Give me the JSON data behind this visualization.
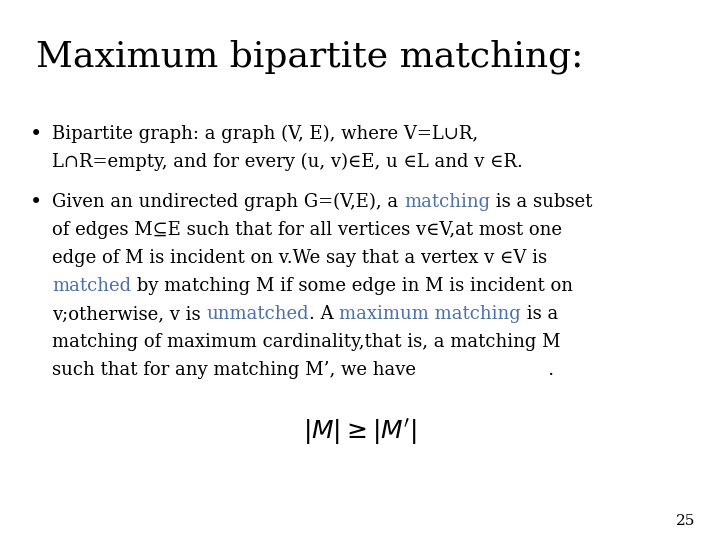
{
  "title": "Maximum bipartite matching:",
  "title_fontsize": 26,
  "body_fontsize": 13,
  "math_fontsize": 18,
  "background_color": "#ffffff",
  "text_color": "#000000",
  "highlight_color": "#4b6faf",
  "page_number": "25",
  "bullet1_line1": "Bipartite graph: a graph (V, E), where V=L∪R,",
  "bullet1_line2": "L∩R=empty, and for every (u, v)∈E, u ∈L and v ∈R.",
  "bullet2_line2": "of edges M⊆E such that for all vertices v∈V,at most one",
  "bullet2_line3": "edge of M is incident on v.We say that a vertex v ∈V is",
  "bullet2_line6": "matching of maximum cardinality,that is, a matching M",
  "bullet2_line7": "such that for any matching M’, we have                       ."
}
